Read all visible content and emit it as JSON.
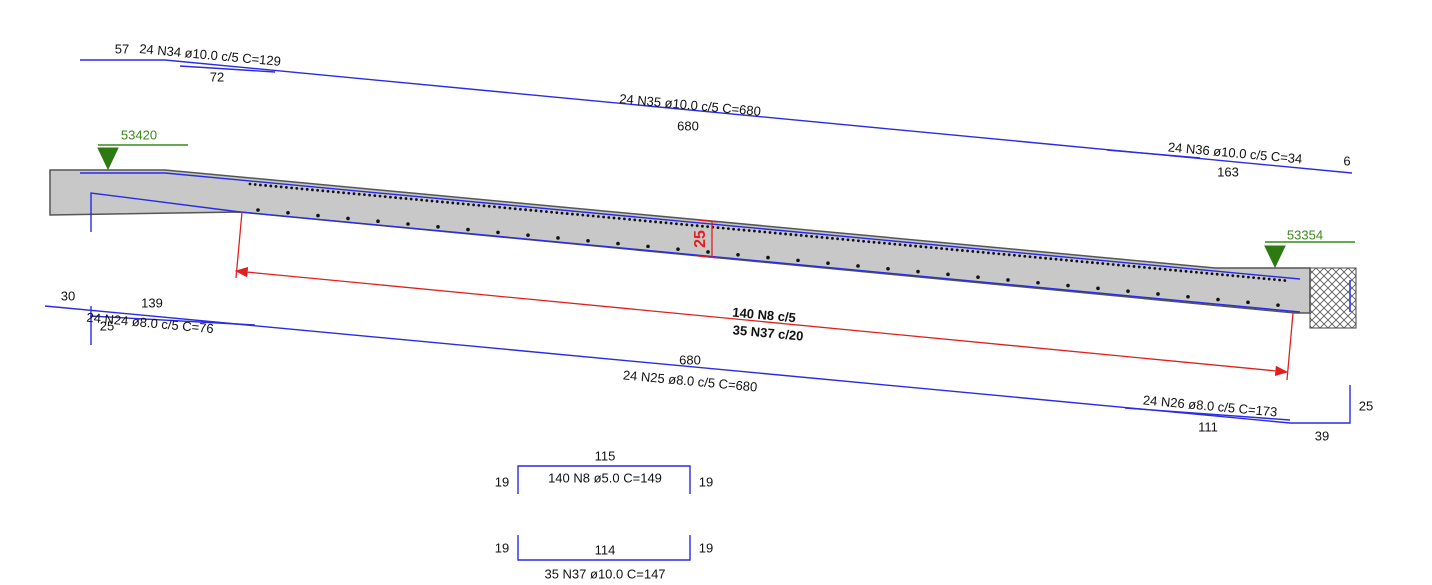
{
  "top_bars": {
    "n34_left": 57,
    "n34_label": "24 N34 ø10.0 c/5  C=129",
    "n34_len": 72,
    "n35_label": "24 N35 ø10.0 c/5  C=680",
    "n35_len": 680,
    "n36_label": "24 N36 ø10.0 c/5  C=34",
    "n36_len": 163,
    "n36_right": 6
  },
  "loads": {
    "left": 53420,
    "right": 53354
  },
  "section": {
    "thickness": 25,
    "spacing_1": "140 N8 c/5",
    "spacing_2": "35 N37 c/20"
  },
  "bottom_bars": {
    "n24_left": 30,
    "n24_len": 139,
    "n24_label": "24 N24 ø8.0 c/5  C=76",
    "n24_hook": 25,
    "n25_len": 680,
    "n25_label": "24 N25 ø8.0 c/5  C=680",
    "n26_label": "24 N26 ø8.0 c/5  C=173",
    "n26_len": 111,
    "n26_end": 39,
    "n26_hook": 25
  },
  "stirrups": {
    "n8_width": 115,
    "n8_label": "140 N8 ø5.0  C=149",
    "n8_left": 19,
    "n8_right": 19,
    "n37_left": 19,
    "n37_width": 114,
    "n37_right": 19,
    "n37_label": "35 N37 ø10.0  C=147"
  }
}
